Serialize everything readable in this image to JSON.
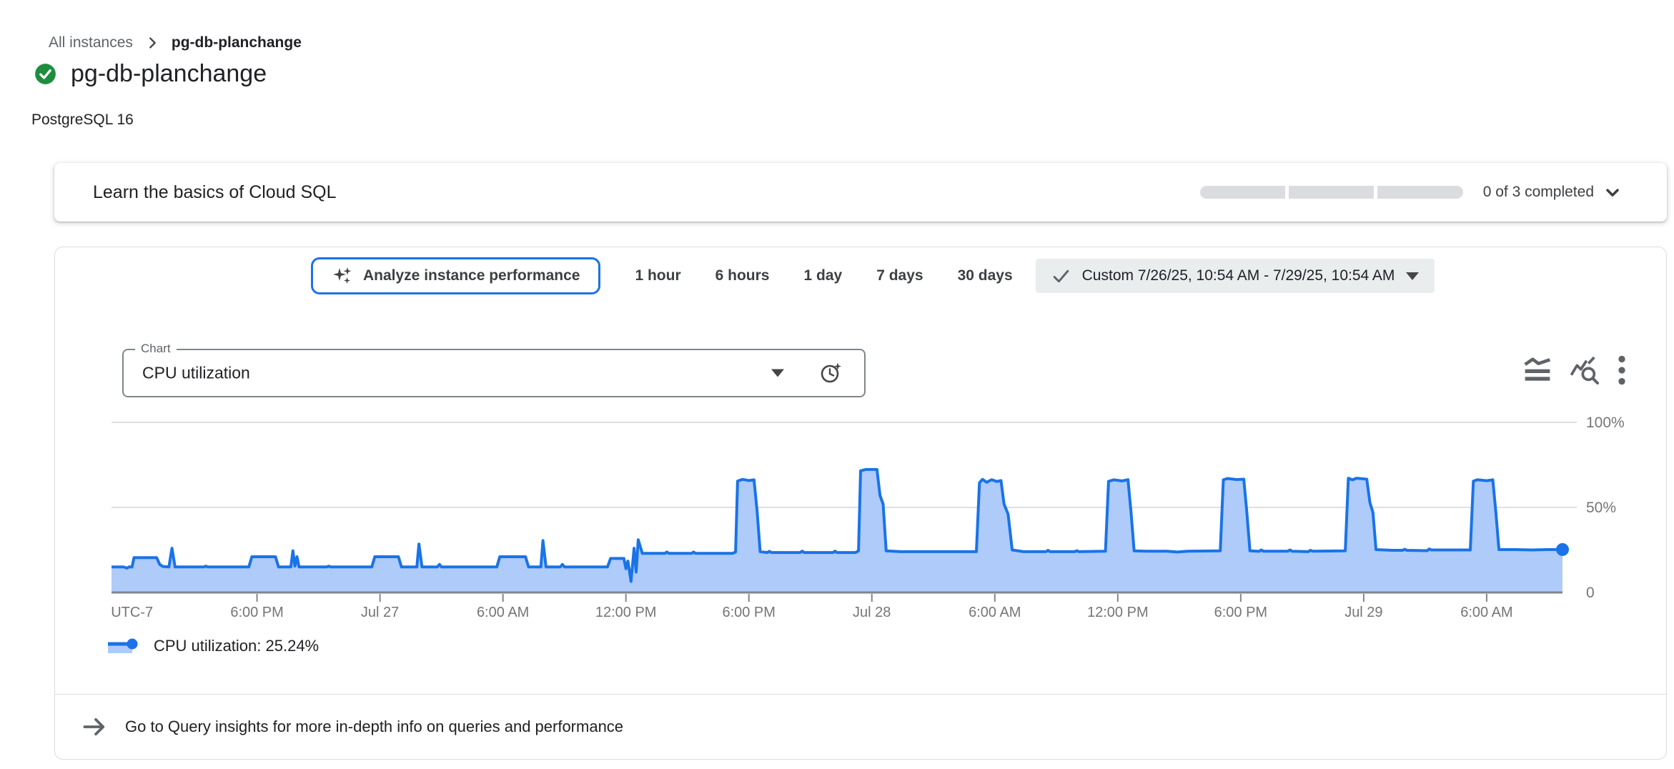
{
  "breadcrumb": {
    "parent": "All instances",
    "current": "pg-db-planchange"
  },
  "header": {
    "title": "pg-db-planchange",
    "status": "healthy",
    "subtitle": "PostgreSQL 16"
  },
  "learn_card": {
    "title": "Learn the basics of Cloud SQL",
    "progress_label": "0 of 3 completed",
    "segments_total": 3,
    "segments_completed": 0
  },
  "toolbar": {
    "analyze_button": "Analyze instance performance",
    "ranges": [
      "1 hour",
      "6 hours",
      "1 day",
      "7 days",
      "30 days"
    ],
    "custom_range": "Custom 7/26/25, 10:54 AM - 7/29/25, 10:54 AM"
  },
  "chart_controls": {
    "select_label": "Chart",
    "select_value": "CPU utilization"
  },
  "legend": {
    "label": "CPU utilization: 25.24%"
  },
  "footer": {
    "link": "Go to Query insights for more in-depth info on queries and performance"
  },
  "colors": {
    "line": "#1a73e8",
    "fill": "#aecbfa",
    "grid": "#e0e0e0",
    "axis": "#80868b",
    "tick_text": "#757575",
    "status_green": "#1e8e3e",
    "accent_blue": "#1a73e8"
  },
  "chart_data": {
    "type": "area",
    "title": "CPU utilization",
    "xlabel": "time (UTC-7), 7/26/25 10:54 AM - 7/29/25 10:54 AM",
    "ylabel": "CPU utilization (%)",
    "ylim": [
      0,
      100
    ],
    "x_unit_hours_from_start": true,
    "x_range_hours": [
      0,
      70.8
    ],
    "current_value_pct": 25.24,
    "grid": true,
    "legend_position": "bottom-left",
    "y_ticks": [
      {
        "pct": 100,
        "label": "100%"
      },
      {
        "pct": 50,
        "label": "50%"
      },
      {
        "pct": 0,
        "label": "0"
      }
    ],
    "x_ticks": [
      {
        "h": 1.0,
        "label": "UTC-7",
        "tick": false
      },
      {
        "h": 7.1,
        "label": "6:00 PM"
      },
      {
        "h": 13.1,
        "label": "Jul 27"
      },
      {
        "h": 19.1,
        "label": "6:00 AM"
      },
      {
        "h": 25.1,
        "label": "12:00 PM"
      },
      {
        "h": 31.1,
        "label": "6:00 PM"
      },
      {
        "h": 37.1,
        "label": "Jul 28"
      },
      {
        "h": 43.1,
        "label": "6:00 AM"
      },
      {
        "h": 49.1,
        "label": "12:00 PM"
      },
      {
        "h": 55.1,
        "label": "6:00 PM"
      },
      {
        "h": 61.1,
        "label": "Jul 29"
      },
      {
        "h": 67.1,
        "label": "6:00 AM"
      }
    ],
    "series": [
      {
        "name": "CPU utilization",
        "points": [
          [
            0,
            15
          ],
          [
            0.6,
            15
          ],
          [
            0.75,
            14.3
          ],
          [
            0.85,
            15
          ],
          [
            1.0,
            15
          ],
          [
            1.1,
            20.5
          ],
          [
            2.2,
            20.5
          ],
          [
            2.35,
            16.5
          ],
          [
            2.5,
            15.3
          ],
          [
            2.8,
            15
          ],
          [
            2.95,
            26
          ],
          [
            3.1,
            15
          ],
          [
            4.5,
            15
          ],
          [
            4.6,
            15.5
          ],
          [
            4.7,
            15
          ],
          [
            6.7,
            15
          ],
          [
            6.85,
            21
          ],
          [
            8.0,
            21
          ],
          [
            8.15,
            15
          ],
          [
            8.75,
            15
          ],
          [
            8.85,
            24.5
          ],
          [
            8.95,
            15.5
          ],
          [
            9.05,
            21
          ],
          [
            9.15,
            15
          ],
          [
            10.5,
            15
          ],
          [
            10.6,
            15.5
          ],
          [
            10.7,
            15
          ],
          [
            12.7,
            15
          ],
          [
            12.85,
            21
          ],
          [
            14.0,
            21
          ],
          [
            14.15,
            15
          ],
          [
            14.9,
            15
          ],
          [
            15.0,
            28.5
          ],
          [
            15.15,
            15
          ],
          [
            15.9,
            15
          ],
          [
            16.0,
            16.5
          ],
          [
            16.1,
            15
          ],
          [
            18.8,
            15
          ],
          [
            18.95,
            21
          ],
          [
            20.2,
            21
          ],
          [
            20.35,
            15
          ],
          [
            20.95,
            15
          ],
          [
            21.05,
            30.5
          ],
          [
            21.2,
            15
          ],
          [
            21.9,
            15
          ],
          [
            22.0,
            16.5
          ],
          [
            22.1,
            15
          ],
          [
            24.2,
            15
          ],
          [
            24.35,
            20
          ],
          [
            25.0,
            20
          ],
          [
            25.1,
            14
          ],
          [
            25.2,
            18.5
          ],
          [
            25.35,
            6.5
          ],
          [
            25.5,
            26
          ],
          [
            25.6,
            12
          ],
          [
            25.7,
            31
          ],
          [
            25.9,
            23
          ],
          [
            26.5,
            23
          ],
          [
            27.0,
            23
          ],
          [
            27.1,
            23.8
          ],
          [
            27.2,
            23
          ],
          [
            28.3,
            23
          ],
          [
            28.4,
            23.8
          ],
          [
            28.5,
            23
          ],
          [
            30.3,
            23
          ],
          [
            30.45,
            23.8
          ],
          [
            30.55,
            65.5
          ],
          [
            30.8,
            66.5
          ],
          [
            31.1,
            65.8
          ],
          [
            31.35,
            66.2
          ],
          [
            31.5,
            48
          ],
          [
            31.65,
            24
          ],
          [
            32.0,
            23.5
          ],
          [
            32.1,
            24.2
          ],
          [
            32.2,
            23.5
          ],
          [
            33.6,
            23.5
          ],
          [
            33.7,
            24.3
          ],
          [
            33.8,
            23.5
          ],
          [
            35.2,
            23.5
          ],
          [
            35.3,
            24.3
          ],
          [
            35.4,
            23.5
          ],
          [
            36.3,
            23.5
          ],
          [
            36.45,
            24.5
          ],
          [
            36.55,
            71.5
          ],
          [
            36.8,
            72.3
          ],
          [
            37.35,
            72.3
          ],
          [
            37.5,
            57
          ],
          [
            37.65,
            52
          ],
          [
            37.8,
            24.5
          ],
          [
            38.5,
            24
          ],
          [
            39.5,
            24
          ],
          [
            40.5,
            24
          ],
          [
            41.5,
            24
          ],
          [
            42.2,
            24
          ],
          [
            42.35,
            64.5
          ],
          [
            42.5,
            66.5
          ],
          [
            42.7,
            64.8
          ],
          [
            42.95,
            66.3
          ],
          [
            43.2,
            65.2
          ],
          [
            43.4,
            65.8
          ],
          [
            43.55,
            52
          ],
          [
            43.75,
            46
          ],
          [
            43.95,
            25
          ],
          [
            44.5,
            24
          ],
          [
            45.6,
            24
          ],
          [
            45.7,
            24.8
          ],
          [
            45.8,
            24
          ],
          [
            47.0,
            24
          ],
          [
            47.1,
            24.6
          ],
          [
            47.2,
            24
          ],
          [
            48.5,
            24.3
          ],
          [
            48.65,
            65.3
          ],
          [
            48.9,
            66.2
          ],
          [
            49.3,
            65.6
          ],
          [
            49.6,
            66.3
          ],
          [
            49.75,
            47
          ],
          [
            49.9,
            24.5
          ],
          [
            50.5,
            24.3
          ],
          [
            51.5,
            24.3
          ],
          [
            52.0,
            23.8
          ],
          [
            52.5,
            24.3
          ],
          [
            54.1,
            24.5
          ],
          [
            54.25,
            66.2
          ],
          [
            54.45,
            67
          ],
          [
            54.9,
            66.4
          ],
          [
            55.25,
            66.6
          ],
          [
            55.4,
            47
          ],
          [
            55.55,
            24.5
          ],
          [
            56.0,
            24.2
          ],
          [
            56.1,
            25
          ],
          [
            56.2,
            24.3
          ],
          [
            57.4,
            24.3
          ],
          [
            57.5,
            25
          ],
          [
            57.6,
            24.3
          ],
          [
            58.4,
            24
          ],
          [
            58.5,
            24.8
          ],
          [
            58.6,
            24.3
          ],
          [
            60.2,
            24.5
          ],
          [
            60.35,
            67.2
          ],
          [
            60.55,
            66.2
          ],
          [
            60.75,
            67.2
          ],
          [
            61.25,
            66.6
          ],
          [
            61.4,
            53
          ],
          [
            61.55,
            47
          ],
          [
            61.7,
            25.2
          ],
          [
            62.5,
            24.8
          ],
          [
            63.0,
            24.8
          ],
          [
            63.1,
            25.4
          ],
          [
            63.2,
            24.8
          ],
          [
            64.2,
            24.6
          ],
          [
            64.3,
            25.6
          ],
          [
            64.4,
            25
          ],
          [
            66.3,
            25
          ],
          [
            66.45,
            65.4
          ],
          [
            66.65,
            66.3
          ],
          [
            67.1,
            65.7
          ],
          [
            67.4,
            66.2
          ],
          [
            67.55,
            47
          ],
          [
            67.7,
            25.2
          ],
          [
            68.5,
            25.2
          ],
          [
            69.3,
            25.0
          ],
          [
            70.0,
            25.2
          ],
          [
            70.8,
            25.24
          ]
        ]
      }
    ]
  }
}
